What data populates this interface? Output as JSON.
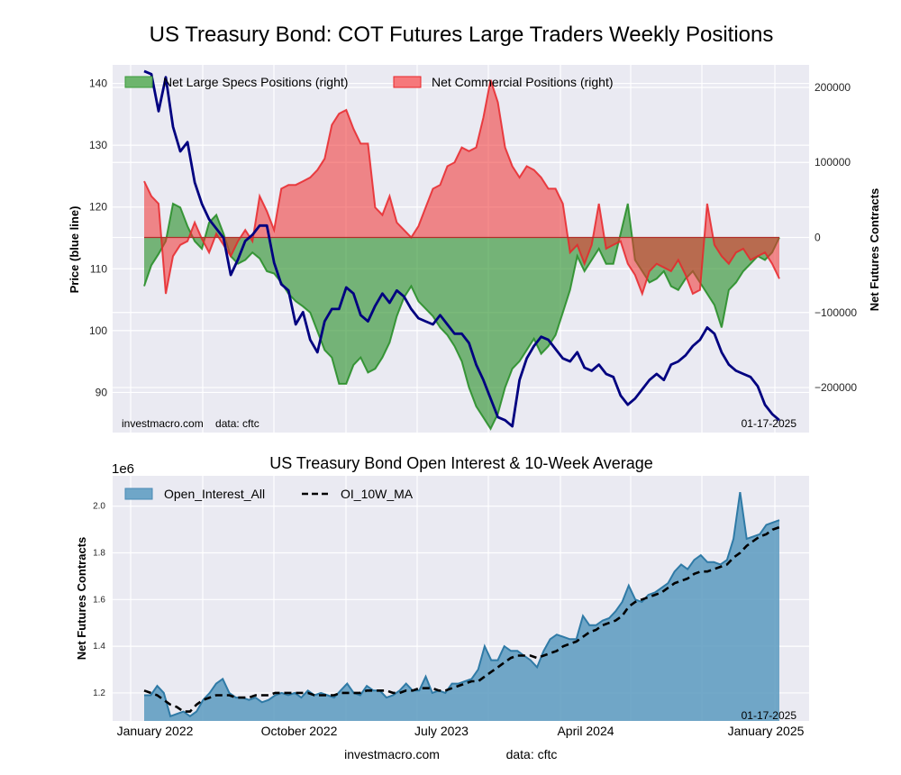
{
  "figure_title": "US Treasury Bond: COT Futures Large Traders Weekly Positions",
  "chart_data": [
    {
      "type": "line",
      "subtype": "price line with filled net-position areas (dual axis)",
      "title": "US Treasury Bond: COT Futures Large Traders Weekly Positions",
      "ylabel": "Price (blue line)",
      "ylabel_right": "Net Futures Contracts",
      "ylim": [
        83.5,
        143
      ],
      "ylim_right": [
        -260000,
        230000
      ],
      "yticks": [
        90,
        100,
        110,
        120,
        130,
        140
      ],
      "yticks_right": [
        -200000,
        -100000,
        0,
        100000,
        200000
      ],
      "ytick_labels_right": [
        "−200000",
        "−100000",
        "0",
        "100000",
        "200000"
      ],
      "grid": true,
      "legend_position": "top-left",
      "legend": [
        "Net Large Specs Positions (right)",
        "Net Commercial Positions (right)"
      ],
      "watermark": "investmacro.com    data: cftc",
      "date_label": "01-17-2025",
      "x_start": "2021-11-30",
      "x_end": "2025-01-14",
      "x_step_days": 14,
      "series": [
        {
          "name": "Price",
          "color": "#000080",
          "axis": "left",
          "values": [
            142.0,
            141.5,
            135.5,
            141.0,
            133.0,
            129.0,
            130.5,
            124.0,
            120.5,
            118.0,
            116.5,
            115.0,
            109.0,
            111.5,
            114.5,
            115.5,
            117.0,
            117.0,
            111.0,
            107.5,
            106.5,
            101.0,
            103.0,
            98.5,
            96.5,
            101.5,
            103.5,
            103.5,
            107.0,
            106.0,
            102.5,
            101.5,
            104.0,
            106.0,
            104.5,
            106.5,
            105.5,
            103.5,
            102.0,
            101.5,
            101.0,
            102.5,
            101.0,
            99.5,
            99.5,
            98.0,
            94.5,
            92.0,
            89.0,
            86.0,
            85.5,
            84.5,
            92.0,
            95.5,
            97.5,
            99.0,
            98.5,
            97.0,
            95.5,
            95.0,
            96.5,
            94.0,
            93.5,
            94.5,
            93.0,
            92.5,
            89.5,
            88.0,
            89.0,
            90.5,
            92.0,
            93.0,
            92.0,
            94.5,
            95.0,
            96.0,
            97.5,
            98.5,
            100.5,
            99.5,
            96.5,
            94.5,
            93.5,
            93.0,
            92.5,
            91.0,
            88.0,
            86.5,
            85.5
          ]
        },
        {
          "name": "Net Large Specs Positions (right)",
          "color": "#228B22",
          "axis": "right",
          "values": [
            -65000,
            -37000,
            -22000,
            -5000,
            45000,
            40000,
            15000,
            -5000,
            -15000,
            20000,
            30000,
            5000,
            -25000,
            -35000,
            -30000,
            -20000,
            -28000,
            -45000,
            -48000,
            -60000,
            -75000,
            -85000,
            -92000,
            -100000,
            -125000,
            -150000,
            -160000,
            -195000,
            -195000,
            -170000,
            -160000,
            -180000,
            -175000,
            -160000,
            -140000,
            -105000,
            -80000,
            -65000,
            -85000,
            -95000,
            -105000,
            -120000,
            -130000,
            -145000,
            -165000,
            -200000,
            -225000,
            -240000,
            -255000,
            -235000,
            -200000,
            -175000,
            -165000,
            -150000,
            -135000,
            -155000,
            -145000,
            -130000,
            -100000,
            -70000,
            -25000,
            -45000,
            -30000,
            -15000,
            -35000,
            -35000,
            5000,
            45000,
            -30000,
            -45000,
            -60000,
            -55000,
            -45000,
            -65000,
            -70000,
            -55000,
            -45000,
            -60000,
            -75000,
            -90000,
            -120000,
            -70000,
            -60000,
            -45000,
            -35000,
            -25000,
            -30000,
            -20000,
            0
          ]
        },
        {
          "name": "Net Commercial Positions (right)",
          "color": "#E8262A",
          "axis": "right",
          "values": [
            75000,
            55000,
            45000,
            -75000,
            -25000,
            -10000,
            -5000,
            20000,
            -2000,
            -20000,
            5000,
            -10000,
            -25000,
            -5000,
            10000,
            -5000,
            55000,
            35000,
            10000,
            65000,
            70000,
            70000,
            75000,
            80000,
            90000,
            105000,
            150000,
            165000,
            170000,
            145000,
            125000,
            125000,
            40000,
            30000,
            55000,
            20000,
            10000,
            0,
            15000,
            40000,
            65000,
            70000,
            95000,
            100000,
            120000,
            115000,
            120000,
            160000,
            210000,
            180000,
            120000,
            95000,
            80000,
            95000,
            90000,
            80000,
            65000,
            65000,
            45000,
            -20000,
            -10000,
            -35000,
            -10000,
            45000,
            -15000,
            -10000,
            -5000,
            -35000,
            -50000,
            -75000,
            -45000,
            -35000,
            -40000,
            -45000,
            -30000,
            -50000,
            -75000,
            -70000,
            45000,
            -10000,
            -25000,
            -35000,
            -20000,
            -15000,
            -30000,
            -25000,
            -20000,
            -35000,
            -55000
          ]
        }
      ]
    },
    {
      "type": "area",
      "title": "US Treasury Bond Open Interest & 10-Week Average",
      "ylabel": "Net Futures Contracts",
      "y_scale_label": "1e6",
      "ylim": [
        1.08,
        2.13
      ],
      "yticks": [
        1.2,
        1.4,
        1.6,
        1.8,
        2.0
      ],
      "ytick_labels": [
        "1.2",
        "1.4",
        "1.6",
        "1.8",
        "2.0"
      ],
      "xtick_labels": [
        "January 2022",
        "October 2022",
        "July 2023",
        "April 2024",
        "January 2025"
      ],
      "grid": true,
      "legend_position": "top-left",
      "legend": [
        "Open_Interest_All",
        "OI_10W_MA"
      ],
      "date_label": "01-17-2025",
      "footer": [
        "investmacro.com",
        "data: cftc"
      ],
      "series": [
        {
          "name": "Open_Interest_All",
          "color": "#4A8BB5",
          "values": [
            1.19,
            1.19,
            1.23,
            1.2,
            1.1,
            1.11,
            1.12,
            1.1,
            1.12,
            1.17,
            1.2,
            1.24,
            1.26,
            1.2,
            1.18,
            1.18,
            1.17,
            1.18,
            1.16,
            1.17,
            1.19,
            1.2,
            1.19,
            1.2,
            1.18,
            1.21,
            1.19,
            1.2,
            1.19,
            1.18,
            1.21,
            1.24,
            1.2,
            1.19,
            1.23,
            1.21,
            1.21,
            1.18,
            1.19,
            1.21,
            1.24,
            1.21,
            1.21,
            1.27,
            1.2,
            1.21,
            1.2,
            1.24,
            1.24,
            1.25,
            1.26,
            1.3,
            1.4,
            1.34,
            1.34,
            1.4,
            1.38,
            1.38,
            1.36,
            1.34,
            1.31,
            1.38,
            1.43,
            1.45,
            1.44,
            1.43,
            1.43,
            1.53,
            1.49,
            1.49,
            1.51,
            1.52,
            1.55,
            1.59,
            1.66,
            1.6,
            1.59,
            1.62,
            1.63,
            1.65,
            1.67,
            1.72,
            1.75,
            1.73,
            1.77,
            1.79,
            1.76,
            1.76,
            1.75,
            1.77,
            1.86,
            2.06,
            1.86,
            1.87,
            1.88,
            1.92,
            1.93,
            1.94
          ]
        },
        {
          "name": "OI_10W_MA",
          "color": "#000000",
          "dashed": true,
          "values": [
            1.21,
            1.2,
            1.19,
            1.17,
            1.15,
            1.14,
            1.12,
            1.12,
            1.15,
            1.17,
            1.18,
            1.19,
            1.19,
            1.19,
            1.18,
            1.18,
            1.18,
            1.19,
            1.19,
            1.19,
            1.2,
            1.2,
            1.2,
            1.2,
            1.2,
            1.2,
            1.19,
            1.19,
            1.19,
            1.19,
            1.2,
            1.2,
            1.2,
            1.2,
            1.21,
            1.21,
            1.21,
            1.21,
            1.2,
            1.2,
            1.21,
            1.21,
            1.22,
            1.22,
            1.22,
            1.21,
            1.21,
            1.22,
            1.23,
            1.24,
            1.25,
            1.25,
            1.27,
            1.29,
            1.31,
            1.33,
            1.35,
            1.36,
            1.36,
            1.36,
            1.35,
            1.36,
            1.37,
            1.38,
            1.4,
            1.41,
            1.42,
            1.44,
            1.46,
            1.47,
            1.49,
            1.5,
            1.51,
            1.53,
            1.57,
            1.59,
            1.6,
            1.61,
            1.62,
            1.63,
            1.65,
            1.67,
            1.68,
            1.69,
            1.71,
            1.72,
            1.72,
            1.73,
            1.74,
            1.75,
            1.78,
            1.8,
            1.83,
            1.85,
            1.87,
            1.88,
            1.9,
            1.91
          ]
        }
      ]
    }
  ]
}
